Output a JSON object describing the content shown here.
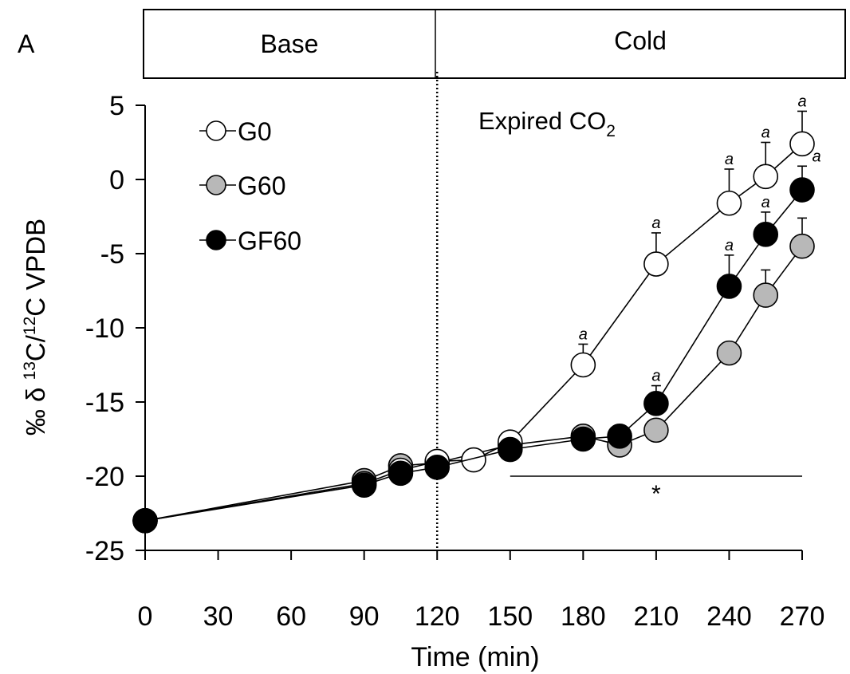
{
  "panel_label": "A",
  "phases": [
    {
      "label": "Base"
    },
    {
      "label": "Cold"
    }
  ],
  "annotation": {
    "main": "Expired CO",
    "subscript": "2"
  },
  "significance": {
    "star": "*",
    "letter": "a"
  },
  "colors": {
    "G0": "#ffffff",
    "G60": "#b8b8b8",
    "GF60": "#000000",
    "line": "#000000"
  },
  "chart_data": {
    "type": "line",
    "title": "",
    "xlabel": "Time (min)",
    "ylabel": {
      "prefix": "‰ δ ",
      "sup1": "13",
      "mid": "C/",
      "sup2": "12",
      "suffix": "C VPDB"
    },
    "xlim": [
      0,
      270
    ],
    "ylim": [
      -25,
      5
    ],
    "xticks": [
      "0",
      "30",
      "60",
      "90",
      "120",
      "150",
      "180",
      "210",
      "240",
      "270"
    ],
    "yticks": [
      "5",
      "0",
      "-5",
      "-10",
      "-15",
      "-20",
      "-25"
    ],
    "legend_position": "top-left",
    "phase_boundary_x": 120,
    "significance_bar": {
      "x_start": 150,
      "x_end": 270,
      "y": -20
    },
    "series": [
      {
        "name": "G0",
        "points": [
          {
            "x": 0,
            "y": -23.0,
            "err": 0,
            "sig": false
          },
          {
            "x": 90,
            "y": -20.5,
            "err": 0,
            "sig": false
          },
          {
            "x": 105,
            "y": -19.6,
            "err": 0,
            "sig": false
          },
          {
            "x": 120,
            "y": -19.0,
            "err": 0,
            "sig": false
          },
          {
            "x": 135,
            "y": -18.9,
            "err": 0,
            "sig": false
          },
          {
            "x": 150,
            "y": -17.7,
            "err": 0,
            "sig": false
          },
          {
            "x": 180,
            "y": -12.5,
            "err": 1.4,
            "sig": true
          },
          {
            "x": 210,
            "y": -5.7,
            "err": 2.1,
            "sig": true
          },
          {
            "x": 240,
            "y": -1.6,
            "err": 2.3,
            "sig": true
          },
          {
            "x": 255,
            "y": 0.2,
            "err": 2.3,
            "sig": true
          },
          {
            "x": 270,
            "y": 2.4,
            "err": 2.2,
            "sig": true
          }
        ]
      },
      {
        "name": "G60",
        "points": [
          {
            "x": 0,
            "y": -23.0,
            "err": 0,
            "sig": false
          },
          {
            "x": 90,
            "y": -20.3,
            "err": 0,
            "sig": false
          },
          {
            "x": 105,
            "y": -19.3,
            "err": 0,
            "sig": false
          },
          {
            "x": 120,
            "y": -19.1,
            "err": 0,
            "sig": false
          },
          {
            "x": 150,
            "y": -17.9,
            "err": 0,
            "sig": false
          },
          {
            "x": 180,
            "y": -17.3,
            "err": 0,
            "sig": false
          },
          {
            "x": 195,
            "y": -17.9,
            "err": 0,
            "sig": false
          },
          {
            "x": 210,
            "y": -16.9,
            "err": 0,
            "sig": false
          },
          {
            "x": 240,
            "y": -11.7,
            "err": 0.7,
            "sig": false
          },
          {
            "x": 255,
            "y": -7.8,
            "err": 1.7,
            "sig": false
          },
          {
            "x": 270,
            "y": -4.5,
            "err": 1.9,
            "sig": false
          }
        ]
      },
      {
        "name": "GF60",
        "points": [
          {
            "x": 0,
            "y": -23.0,
            "err": 0,
            "sig": false
          },
          {
            "x": 90,
            "y": -20.6,
            "err": 0,
            "sig": false
          },
          {
            "x": 105,
            "y": -19.8,
            "err": 0,
            "sig": false
          },
          {
            "x": 120,
            "y": -19.4,
            "err": 0,
            "sig": false
          },
          {
            "x": 150,
            "y": -18.2,
            "err": 0,
            "sig": false
          },
          {
            "x": 180,
            "y": -17.5,
            "err": 0,
            "sig": false
          },
          {
            "x": 195,
            "y": -17.3,
            "err": 0,
            "sig": false
          },
          {
            "x": 210,
            "y": -15.1,
            "err": 1.2,
            "sig": true
          },
          {
            "x": 240,
            "y": -7.2,
            "err": 2.1,
            "sig": true
          },
          {
            "x": 255,
            "y": -3.7,
            "err": 1.5,
            "sig": true
          },
          {
            "x": 270,
            "y": -0.7,
            "err": 1.6,
            "sig": true
          }
        ]
      }
    ]
  }
}
